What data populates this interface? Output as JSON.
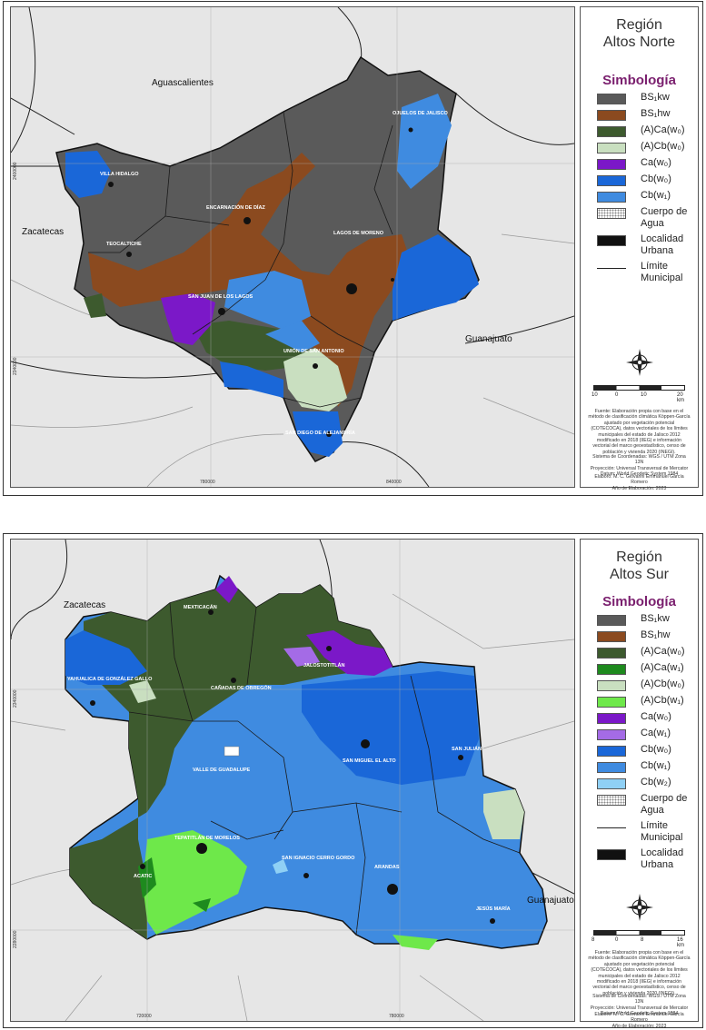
{
  "north": {
    "legend": {
      "title_line1": "Región",
      "title_line2": "Altos Norte",
      "heading": "Simbología",
      "items": [
        {
          "label": "BS₁kw",
          "color": "#5a5a5a"
        },
        {
          "label": "BS₁hw",
          "color": "#8b4a1f"
        },
        {
          "label": "(A)Ca(w₀)",
          "color": "#3d5a2e"
        },
        {
          "label": "(A)Cb(w₀)",
          "color": "#c9dfc0"
        },
        {
          "label": "Ca(w₀)",
          "color": "#7b18c8"
        },
        {
          "label": "Cb(w₀)",
          "color": "#1a67d8"
        },
        {
          "label": "Cb(w₁)",
          "color": "#3f8be0"
        },
        {
          "label": "Cuerpo de Agua",
          "color": "water"
        },
        {
          "label": "Localidad Urbana",
          "color": "#111111"
        },
        {
          "label": "Límite Municipal",
          "color": "line"
        }
      ]
    },
    "scale": [
      "10",
      "0",
      "10",
      "20 km"
    ],
    "note_source": "Fuente: Elaboración propia con base en el método de clasificación climática Köppen-García ajustado por vegetación potencial (COTECOCA), datos vectoriales de los límites municipales del estado de Jalisco 2012 modificado en 2018 (IIEG) e información vectorial del marco geoestadístico, censo de población y vivienda 2020 (INEGI).",
    "note_coords": "Sistema de Coordenadas: WGS / UTM Zona 13N\nProyección: Universal Transversal de Mercator\nDatum: World Geodetic System 1984",
    "note_author": "Elaboró: M. C. Giovanni Emmanuel García Romero\nAño de Elaboración: 2023",
    "states": {
      "aguascalientes": "Aguascalientes",
      "zacatecas": "Zacatecas",
      "guanajuato": "Guanajuato"
    },
    "localities": {
      "villa_hidalgo": "VILLA HIDALGO",
      "encarnacion": "ENCARNACIÓN DE DÍAZ",
      "ojuelos": "OJUELOS DE JALISCO",
      "teocaltiche": "TEOCALTICHE",
      "lagos": "LAGOS DE MORENO",
      "san_juan": "SAN JUAN DE LOS LAGOS",
      "union": "UNIÓN DE SAN ANTONIO",
      "san_diego": "SAN DIEGO DE ALEJANDRÍA"
    },
    "axis": {
      "x1": "780000",
      "x2": "840000",
      "y1": "2400000",
      "y2": "2340000"
    }
  },
  "south": {
    "legend": {
      "title_line1": "Región",
      "title_line2": "Altos Sur",
      "heading": "Simbología",
      "items": [
        {
          "label": "BS₁kw",
          "color": "#5a5a5a"
        },
        {
          "label": "BS₁hw",
          "color": "#8b4a1f"
        },
        {
          "label": "(A)Ca(w₀)",
          "color": "#3d5a2e"
        },
        {
          "label": "(A)Ca(w₁)",
          "color": "#1e8a1e"
        },
        {
          "label": "(A)Cb(w₀)",
          "color": "#c9dfc0"
        },
        {
          "label": "(A)Cb(w₁)",
          "color": "#6ee84a"
        },
        {
          "label": "Ca(w₀)",
          "color": "#7b18c8"
        },
        {
          "label": "Ca(w₁)",
          "color": "#a46be6"
        },
        {
          "label": "Cb(w₀)",
          "color": "#1a67d8"
        },
        {
          "label": "Cb(w₁)",
          "color": "#3f8be0"
        },
        {
          "label": "Cb(w₂)",
          "color": "#8fd0f5"
        },
        {
          "label": "Cuerpo de Agua",
          "color": "water"
        },
        {
          "label": "Límite Municipal",
          "color": "line"
        },
        {
          "label": "Localidad Urbana",
          "color": "#111111"
        }
      ]
    },
    "scale": [
      "8",
      "0",
      "8",
      "16 km"
    ],
    "note_source": "Fuente: Elaboración propia con base en el método de clasificación climática Köppen-García ajustado por vegetación potencial (COTECOCA), datos vectoriales de los límites municipales del estado de Jalisco 2012 modificado en 2018 (IIEG) e información vectorial del marco geoestadístico, censo de población y vivienda 2020 (INEGI).",
    "note_coords": "Sistema de Coordenadas: WGS / UTM Zona 13N\nProyección: Universal Transversal de Mercator\nDatum: World Geodetic System 1984",
    "note_author": "Elaboró: M. C. Giovanni Emmanuel García Romero\nAño de Elaboración: 2023",
    "states": {
      "zacatecas": "Zacatecas",
      "guanajuato": "Guanajuato"
    },
    "localities": {
      "mexticacan": "MEXTICACÁN",
      "jalostotitlan": "JALOSTOTITLÁN",
      "yahualica": "YAHUALICA DE GONZÁLEZ GALLO",
      "canadas": "CAÑADAS DE OBREGÓN",
      "valle": "VALLE DE GUADALUPE",
      "san_miguel": "SAN MIGUEL EL ALTO",
      "san_julian": "SAN JULIÁN",
      "tepatitlan": "TEPATITLÁN DE MORELOS",
      "acatic": "ACATIC",
      "san_ignacio": "SAN IGNACIO CERRO GORDO",
      "arandas": "ARANDAS",
      "jesus_maria": "JESÚS MARÍA"
    },
    "axis": {
      "x1": "720000",
      "x2": "780000",
      "y1": "2340000",
      "y2": "2280000"
    }
  }
}
